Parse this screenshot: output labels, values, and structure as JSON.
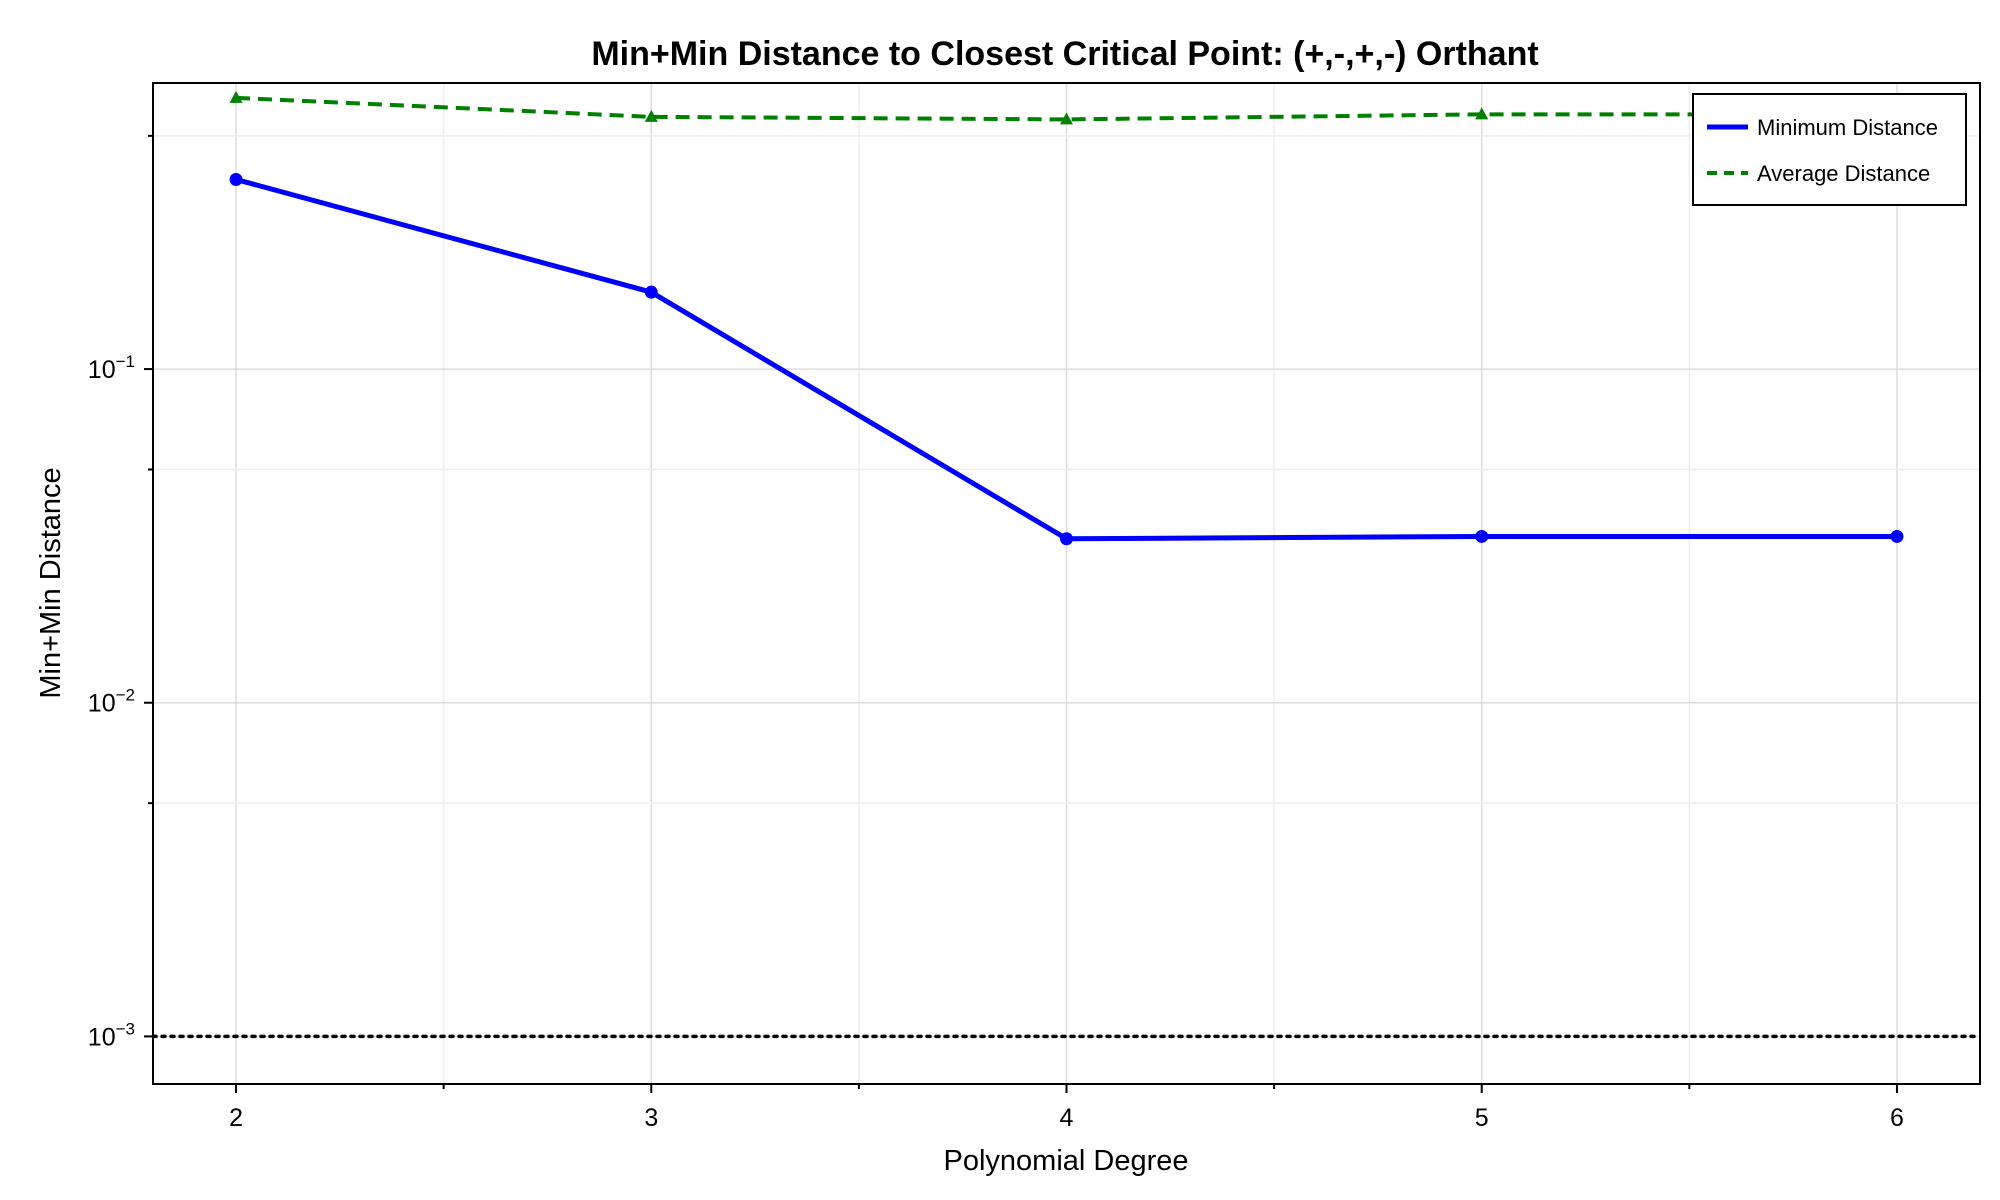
{
  "chart_data": {
    "type": "line",
    "title": "Min+Min Distance to Closest Critical Point: (+,-,+,-) Orthant",
    "xlabel": "Polynomial Degree",
    "ylabel": "Min+Min Distance",
    "x": [
      2,
      3,
      4,
      5,
      6
    ],
    "x_ticks": [
      "2",
      "3",
      "4",
      "5",
      "6"
    ],
    "xlim": [
      1.8,
      6.2
    ],
    "ylim": [
      0.00072,
      0.72
    ],
    "yscale": "log",
    "y_ticks": [
      {
        "base": "10",
        "exp": "−1",
        "value": 0.1
      },
      {
        "base": "10",
        "exp": "−2",
        "value": 0.01
      },
      {
        "base": "10",
        "exp": "−3",
        "value": 0.001
      }
    ],
    "grid": true,
    "legend_position": "top-right",
    "series": [
      {
        "name": "Minimum Distance",
        "values": [
          0.37,
          0.17,
          0.031,
          0.0315,
          0.0315
        ],
        "color": "#0000ff",
        "style": "solid",
        "marker": "circle"
      },
      {
        "name": "Average Distance",
        "values": [
          0.65,
          0.57,
          0.56,
          0.58,
          0.58
        ],
        "color": "#008000",
        "style": "dashed",
        "marker": "triangle"
      }
    ],
    "reference_line": {
      "y": 0.001,
      "color": "#000000",
      "style": "dotted"
    }
  }
}
